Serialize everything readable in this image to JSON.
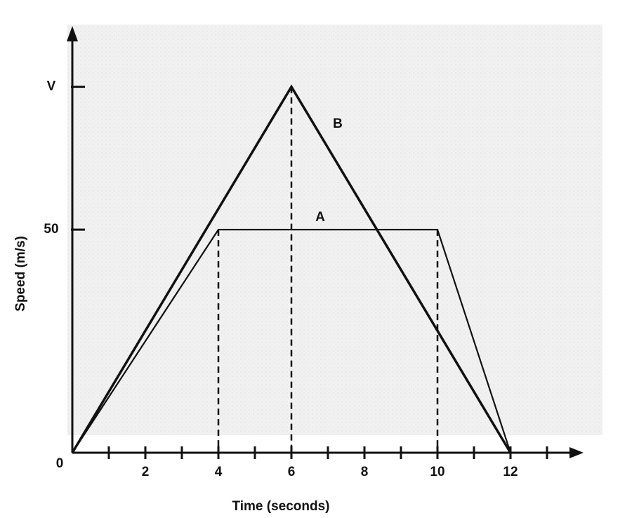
{
  "chart_data": {
    "type": "line",
    "xlabel": "Time (seconds)",
    "ylabel": "Speed (m/s)",
    "xlim": [
      0,
      14
    ],
    "ylim": [
      0,
      95
    ],
    "xticks": [
      2,
      4,
      6,
      8,
      10,
      12
    ],
    "xminorticks": [
      1,
      3,
      5,
      7,
      9,
      11,
      13
    ],
    "yticks": [
      0,
      50,
      {
        "value": 82,
        "label": "V"
      }
    ],
    "dashed_drop_lines": true,
    "series": [
      {
        "name": "A",
        "color": "#111111",
        "x": [
          0,
          4,
          10,
          12
        ],
        "values": [
          0,
          50,
          50,
          0
        ]
      },
      {
        "name": "B",
        "color": "#111111",
        "x": [
          0,
          6,
          12
        ],
        "values": [
          0,
          82,
          0
        ]
      }
    ]
  }
}
